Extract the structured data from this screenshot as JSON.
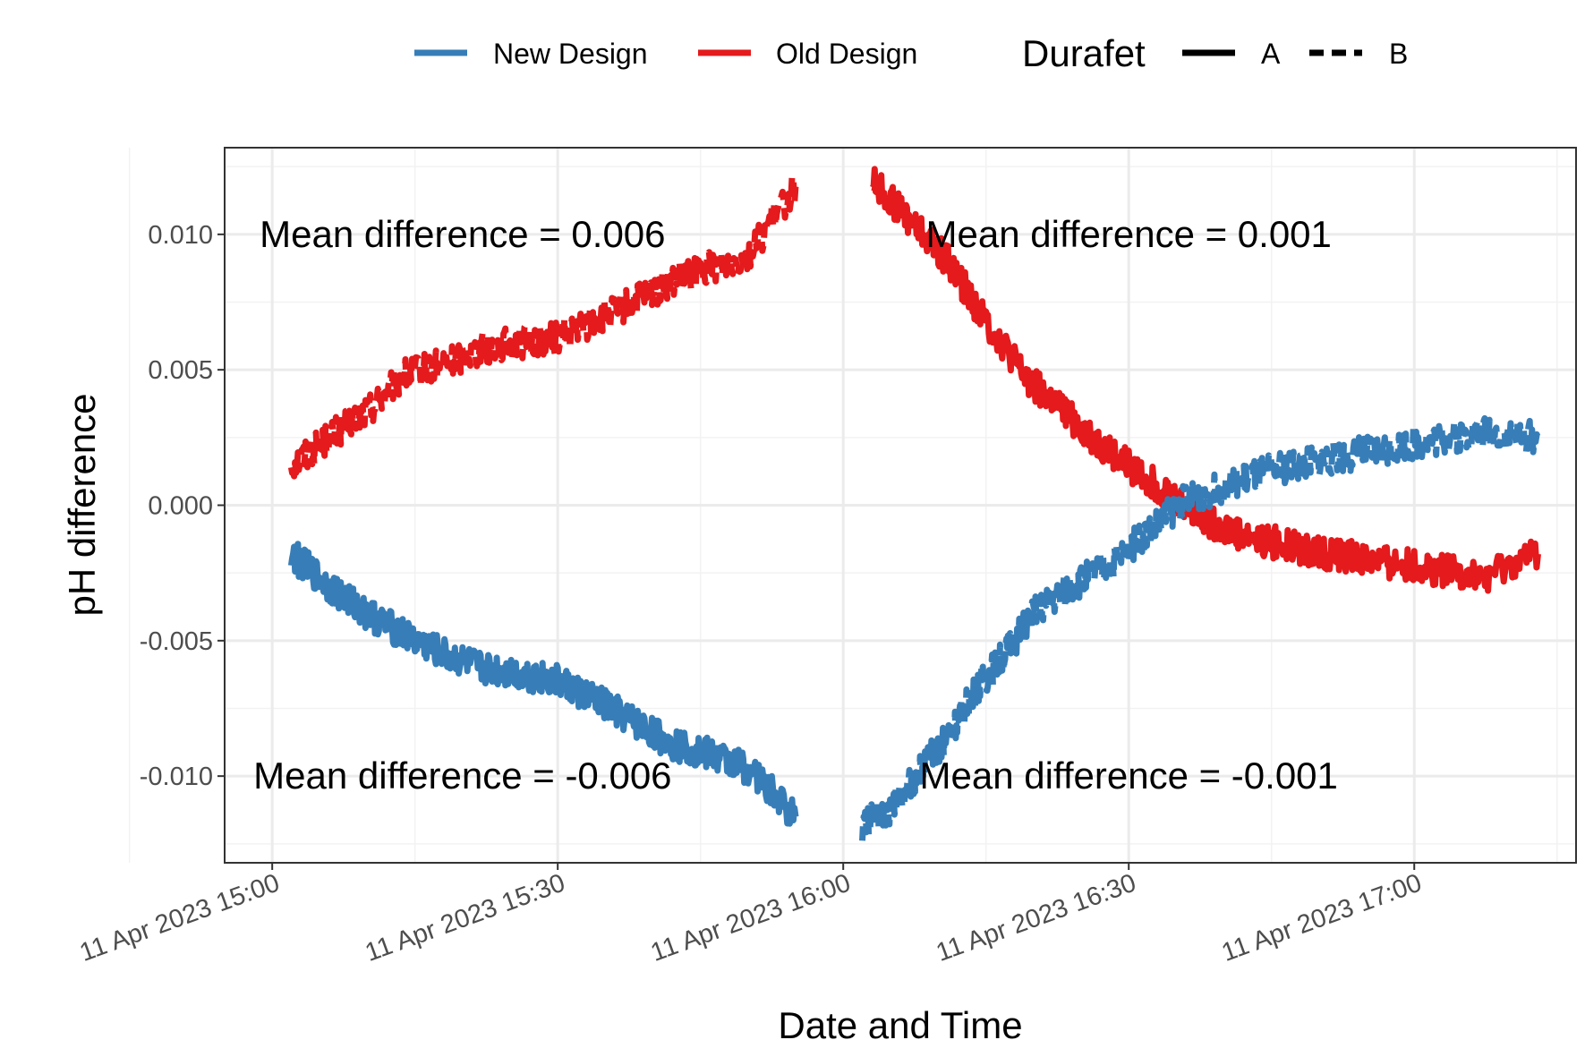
{
  "chart_data": {
    "type": "line",
    "xlabel": "Date and Time",
    "ylabel": "pH difference",
    "x_tick_labels": [
      "11 Apr 2023 15:00",
      "11 Apr 2023 15:30",
      "11 Apr 2023 16:00",
      "11 Apr 2023 16:30",
      "11 Apr 2023 17:00"
    ],
    "y_tick_labels": [
      "0.010",
      "0.005",
      "0.000",
      "-0.005",
      "-0.010"
    ],
    "y_ticks": [
      0.01,
      0.005,
      0.0,
      -0.005,
      -0.01
    ],
    "ylim": [
      -0.0132,
      0.0132
    ],
    "xlim": [
      "2023-04-11 14:55",
      "2023-04-11 17:17"
    ],
    "grid": true,
    "legend_placement": "top",
    "legend": {
      "color_entries": [
        {
          "label": "New Design",
          "color": "#377eb8"
        },
        {
          "label": "Old Design",
          "color": "#e41a1c"
        }
      ],
      "linetype_title": "Durafet",
      "linetype_entries": [
        {
          "label": "A",
          "dash": "solid"
        },
        {
          "label": "B",
          "dash": "dashed"
        }
      ]
    },
    "series": [
      {
        "design": "Old Design",
        "durafet": "B",
        "color": "#e41a1c",
        "dash": "dashed",
        "x": [
          "2023-04-11 15:02",
          "2023-04-11 15:06",
          "2023-04-11 15:10",
          "2023-04-11 15:14",
          "2023-04-11 15:18",
          "2023-04-11 15:22",
          "2023-04-11 15:26",
          "2023-04-11 15:30",
          "2023-04-11 15:34",
          "2023-04-11 15:38",
          "2023-04-11 15:42",
          "2023-04-11 15:46",
          "2023-04-11 15:50",
          "2023-04-11 15:55"
        ],
        "y": [
          0.0015,
          0.0025,
          0.0035,
          0.0048,
          0.0052,
          0.0058,
          0.006,
          0.0062,
          0.0068,
          0.0075,
          0.0082,
          0.0088,
          0.0092,
          0.0118
        ]
      },
      {
        "design": "Old Design",
        "durafet": "A",
        "color": "#e41a1c",
        "dash": "solid",
        "x": [
          "2023-04-11 16:03",
          "2023-04-11 16:07",
          "2023-04-11 16:11",
          "2023-04-11 16:15",
          "2023-04-11 16:19",
          "2023-04-11 16:23",
          "2023-04-11 16:27",
          "2023-04-11 16:31",
          "2023-04-11 16:35",
          "2023-04-11 16:39",
          "2023-04-11 16:43",
          "2023-04-11 16:47",
          "2023-04-11 16:51",
          "2023-04-11 16:55",
          "2023-04-11 16:59",
          "2023-04-11 17:03",
          "2023-04-11 17:07",
          "2023-04-11 17:13"
        ],
        "y": [
          0.012,
          0.0105,
          0.009,
          0.0068,
          0.0048,
          0.0035,
          0.0022,
          0.0012,
          0.0002,
          -0.0007,
          -0.0012,
          -0.0015,
          -0.0018,
          -0.002,
          -0.0022,
          -0.0024,
          -0.0027,
          -0.0018
        ]
      },
      {
        "design": "New Design",
        "durafet": "A",
        "color": "#377eb8",
        "dash": "solid",
        "x": [
          "2023-04-11 15:02",
          "2023-04-11 15:06",
          "2023-04-11 15:10",
          "2023-04-11 15:14",
          "2023-04-11 15:18",
          "2023-04-11 15:22",
          "2023-04-11 15:26",
          "2023-04-11 15:30",
          "2023-04-11 15:34",
          "2023-04-11 15:38",
          "2023-04-11 15:42",
          "2023-04-11 15:46",
          "2023-04-11 15:50",
          "2023-04-11 15:55"
        ],
        "y": [
          -0.0018,
          -0.003,
          -0.004,
          -0.0048,
          -0.0055,
          -0.006,
          -0.0062,
          -0.0065,
          -0.0072,
          -0.008,
          -0.0088,
          -0.0092,
          -0.0097,
          -0.0115
        ]
      },
      {
        "design": "New Design",
        "durafet": "B",
        "color": "#377eb8",
        "dash": "dashed",
        "x": [
          "2023-04-11 16:02",
          "2023-04-11 16:05",
          "2023-04-11 16:08",
          "2023-04-11 16:11",
          "2023-04-11 16:14",
          "2023-04-11 16:17",
          "2023-04-11 16:20",
          "2023-04-11 16:24",
          "2023-04-11 16:28",
          "2023-04-11 16:32",
          "2023-04-11 16:36",
          "2023-04-11 16:40",
          "2023-04-11 16:44",
          "2023-04-11 16:48",
          "2023-04-11 16:52",
          "2023-04-11 16:56",
          "2023-04-11 17:00",
          "2023-04-11 17:04",
          "2023-04-11 17:08",
          "2023-04-11 17:13"
        ],
        "y": [
          -0.0118,
          -0.0112,
          -0.0098,
          -0.0085,
          -0.0068,
          -0.0055,
          -0.004,
          -0.003,
          -0.0022,
          -0.001,
          0.0002,
          0.0007,
          0.0012,
          0.0015,
          0.0018,
          0.002,
          0.0023,
          0.0025,
          0.0027,
          0.0025
        ]
      }
    ],
    "annotations": [
      {
        "text": "Mean difference = 0.006",
        "x": "2023-04-11 15:20",
        "y": 0.01
      },
      {
        "text": "Mean difference = 0.001",
        "x": "2023-04-11 16:30",
        "y": 0.01
      },
      {
        "text": "Mean difference = -0.006",
        "x": "2023-04-11 15:20",
        "y": -0.01
      },
      {
        "text": "Mean difference = -0.001",
        "x": "2023-04-11 16:30",
        "y": -0.01
      }
    ]
  }
}
